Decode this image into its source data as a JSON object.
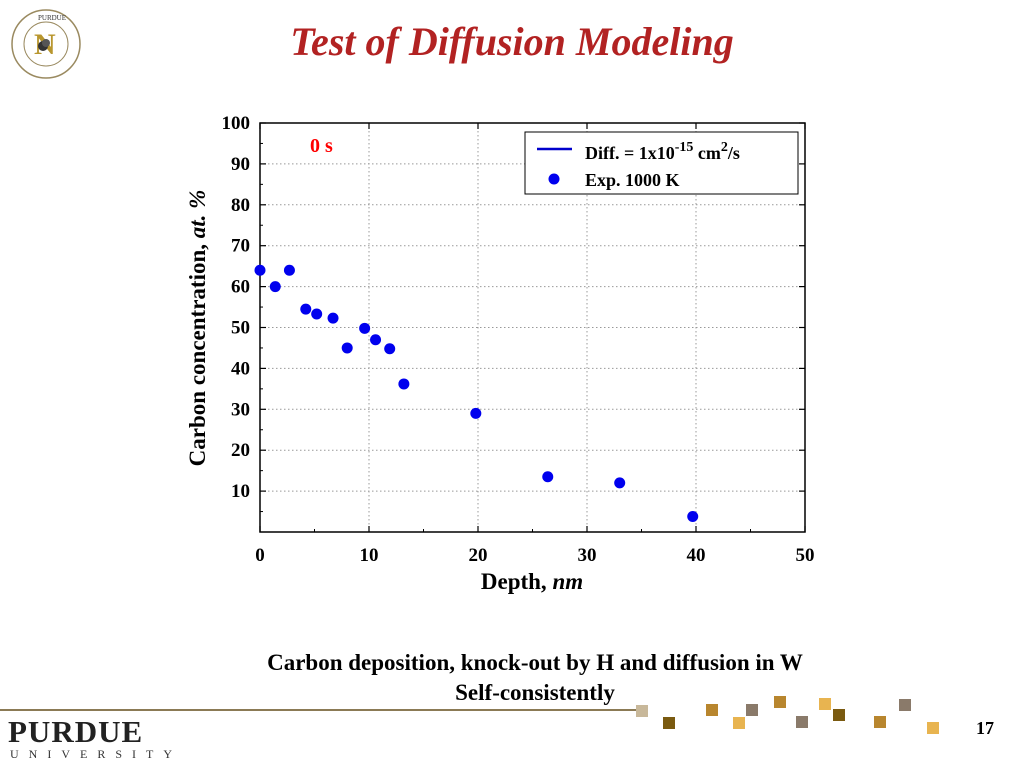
{
  "slide": {
    "title": "Test of Diffusion Modeling",
    "caption_line1": "Carbon deposition, knock-out  by H and diffusion in W",
    "caption_line2": "Self-consistently",
    "page_number": "17",
    "logo_wordmark": "PURDUE",
    "logo_subtitle": "UNIVERSITY",
    "seal_text": "PURDUE NUCLEAR ENGINEERING"
  },
  "chart_data": {
    "type": "scatter",
    "time_label": "0 s",
    "xlabel_main": "Depth, ",
    "xlabel_unit": "nm",
    "ylabel_main": "Carbon concentration, ",
    "ylabel_unit": "at. %",
    "xlim": [
      0,
      50
    ],
    "ylim": [
      0,
      100
    ],
    "x_ticks": [
      "0",
      "10",
      "20",
      "30",
      "40",
      "50"
    ],
    "y_ticks": [
      "10",
      "20",
      "30",
      "40",
      "50",
      "60",
      "70",
      "80",
      "90",
      "100"
    ],
    "grid": true,
    "legend_position": "top-right",
    "legend": {
      "line_label_prefix": "Diff. = 1x10",
      "line_label_exp": "-15",
      "line_label_mid": " cm",
      "line_label_exp2": "2",
      "line_label_suffix": "/s",
      "points_label": "Exp. 1000 K"
    },
    "colors": {
      "title": "#b22222",
      "time_label": "#ff0000",
      "points": "#0000ee",
      "line": "#0000cc"
    },
    "series": [
      {
        "name": "Exp. 1000 K",
        "x": [
          0.0,
          1.4,
          2.7,
          4.2,
          5.2,
          6.7,
          8.0,
          9.6,
          10.6,
          11.9,
          13.2,
          19.8,
          26.4,
          33.0,
          39.7
        ],
        "y": [
          64,
          60,
          64,
          54.5,
          53.3,
          52.3,
          45.0,
          49.8,
          47.0,
          44.8,
          36.2,
          29.0,
          13.5,
          12.0,
          3.8
        ]
      }
    ]
  }
}
